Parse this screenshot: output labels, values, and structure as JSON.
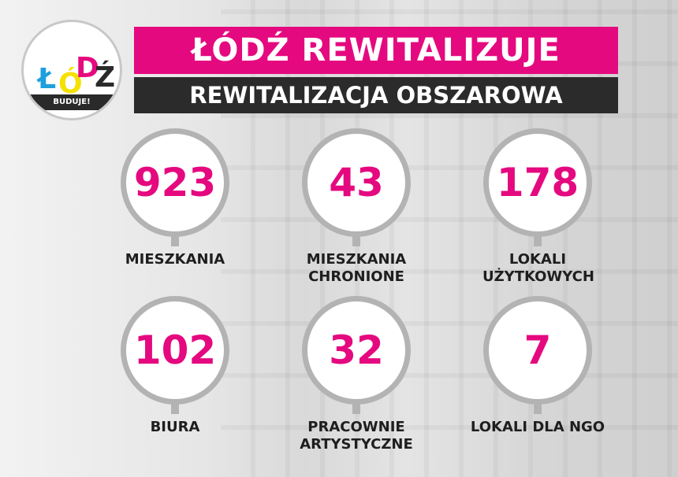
{
  "logo": {
    "letters": [
      "Ł",
      "Ó",
      "D",
      "Ź"
    ],
    "tagline": "BUDUJE!"
  },
  "header": {
    "title": "ŁÓDŹ REWITALIZUJE",
    "subtitle": "REWITALIZACJA OBSZAROWA"
  },
  "colors": {
    "accent": "#e5097f",
    "dark": "#2b2b2b",
    "ring": "#b3b3b3"
  },
  "stats": [
    {
      "value": "923",
      "label": "MIESZKANIA"
    },
    {
      "value": "43",
      "label": "MIESZKANIA CHRONIONE"
    },
    {
      "value": "178",
      "label": "LOKALI UŻYTKOWYCH"
    },
    {
      "value": "102",
      "label": "BIURA"
    },
    {
      "value": "32",
      "label": "PRACOWNIE ARTYSTYCZNE"
    },
    {
      "value": "7",
      "label": "LOKALI DLA NGO"
    }
  ]
}
